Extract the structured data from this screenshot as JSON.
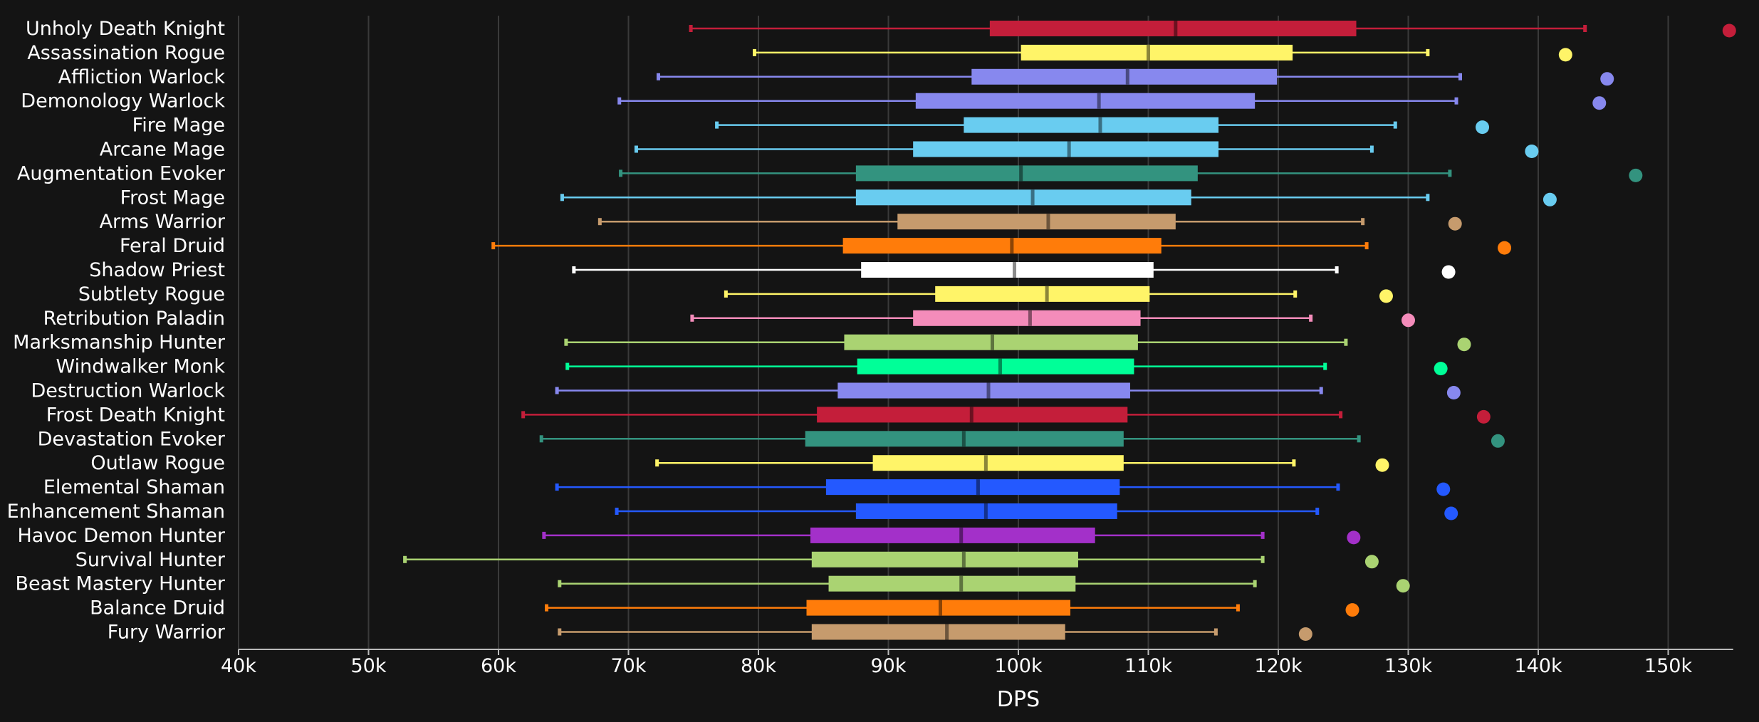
{
  "chart_data": {
    "type": "box",
    "xlabel": "DPS",
    "xlim": [
      40000,
      155000
    ],
    "x_ticks": [
      40000,
      50000,
      60000,
      70000,
      80000,
      90000,
      100000,
      110000,
      120000,
      130000,
      140000,
      150000
    ],
    "x_tick_labels": [
      "40k",
      "50k",
      "60k",
      "70k",
      "80k",
      "90k",
      "100k",
      "110k",
      "120k",
      "130k",
      "140k",
      "150k"
    ],
    "grid": true,
    "series": [
      {
        "name": "Unholy Death Knight",
        "color": "#C41E3A",
        "min": 74800,
        "q1": 97800,
        "median": 112100,
        "q3": 126000,
        "max": 143600,
        "outlier": 154700
      },
      {
        "name": "Assassination Rogue",
        "color": "#FFF468",
        "min": 79700,
        "q1": 100200,
        "median": 110000,
        "q3": 121100,
        "max": 131500,
        "outlier": 142100
      },
      {
        "name": "Affliction Warlock",
        "color": "#8788EE",
        "min": 72300,
        "q1": 96400,
        "median": 108400,
        "q3": 119900,
        "max": 134000,
        "outlier": 145300
      },
      {
        "name": "Demonology Warlock",
        "color": "#8788EE",
        "min": 69300,
        "q1": 92100,
        "median": 106200,
        "q3": 118200,
        "max": 133700,
        "outlier": 144700
      },
      {
        "name": "Fire Mage",
        "color": "#69CCF0",
        "min": 76800,
        "q1": 95800,
        "median": 106300,
        "q3": 115400,
        "max": 129000,
        "outlier": 135700
      },
      {
        "name": "Arcane Mage",
        "color": "#69CCF0",
        "min": 70600,
        "q1": 91900,
        "median": 103900,
        "q3": 115400,
        "max": 127200,
        "outlier": 139500
      },
      {
        "name": "Augmentation Evoker",
        "color": "#33937F",
        "min": 69400,
        "q1": 87500,
        "median": 100200,
        "q3": 113800,
        "max": 133200,
        "outlier": 147500
      },
      {
        "name": "Frost Mage",
        "color": "#69CCF0",
        "min": 64900,
        "q1": 87500,
        "median": 101100,
        "q3": 113300,
        "max": 131500,
        "outlier": 140900
      },
      {
        "name": "Arms Warrior",
        "color": "#C69B6D",
        "min": 67800,
        "q1": 90700,
        "median": 102300,
        "q3": 112100,
        "max": 126500,
        "outlier": 133600
      },
      {
        "name": "Feral Druid",
        "color": "#FF7C0A",
        "min": 59600,
        "q1": 86500,
        "median": 99500,
        "q3": 111000,
        "max": 126800,
        "outlier": 137400
      },
      {
        "name": "Shadow Priest",
        "color": "#FFFFFF",
        "min": 65800,
        "q1": 87900,
        "median": 99700,
        "q3": 110400,
        "max": 124500,
        "outlier": 133100
      },
      {
        "name": "Subtlety Rogue",
        "color": "#FFF468",
        "min": 77500,
        "q1": 93600,
        "median": 102200,
        "q3": 110100,
        "max": 121300,
        "outlier": 128300
      },
      {
        "name": "Retribution Paladin",
        "color": "#F48CBA",
        "min": 74900,
        "q1": 91900,
        "median": 100900,
        "q3": 109400,
        "max": 122500,
        "outlier": 130000
      },
      {
        "name": "Marksmanship Hunter",
        "color": "#AAD372",
        "min": 65200,
        "q1": 86600,
        "median": 98000,
        "q3": 109200,
        "max": 125200,
        "outlier": 134300
      },
      {
        "name": "Windwalker Monk",
        "color": "#00FF98",
        "min": 65300,
        "q1": 87600,
        "median": 98600,
        "q3": 108900,
        "max": 123600,
        "outlier": 132500
      },
      {
        "name": "Destruction Warlock",
        "color": "#8788EE",
        "min": 64500,
        "q1": 86100,
        "median": 97700,
        "q3": 108600,
        "max": 123300,
        "outlier": 133500
      },
      {
        "name": "Frost Death Knight",
        "color": "#C41E3A",
        "min": 61900,
        "q1": 84500,
        "median": 96400,
        "q3": 108400,
        "max": 124800,
        "outlier": 135800
      },
      {
        "name": "Devastation Evoker",
        "color": "#33937F",
        "min": 63300,
        "q1": 83600,
        "median": 95800,
        "q3": 108100,
        "max": 126200,
        "outlier": 136900
      },
      {
        "name": "Outlaw Rogue",
        "color": "#FFF468",
        "min": 72200,
        "q1": 88800,
        "median": 97500,
        "q3": 108100,
        "max": 121200,
        "outlier": 128000
      },
      {
        "name": "Elemental Shaman",
        "color": "#2459FF",
        "min": 64500,
        "q1": 85200,
        "median": 96900,
        "q3": 107800,
        "max": 124600,
        "outlier": 132700
      },
      {
        "name": "Enhancement Shaman",
        "color": "#2459FF",
        "min": 69100,
        "q1": 87500,
        "median": 97500,
        "q3": 107600,
        "max": 123000,
        "outlier": 133300
      },
      {
        "name": "Havoc Demon Hunter",
        "color": "#A330C9",
        "min": 63500,
        "q1": 84000,
        "median": 95600,
        "q3": 105900,
        "max": 118800,
        "outlier": 125800
      },
      {
        "name": "Survival Hunter",
        "color": "#AAD372",
        "min": 52800,
        "q1": 84100,
        "median": 95800,
        "q3": 104600,
        "max": 118800,
        "outlier": 127200
      },
      {
        "name": "Beast Mastery Hunter",
        "color": "#AAD372",
        "min": 64700,
        "q1": 85400,
        "median": 95600,
        "q3": 104400,
        "max": 118200,
        "outlier": 129600
      },
      {
        "name": "Balance Druid",
        "color": "#FF7C0A",
        "min": 63700,
        "q1": 83700,
        "median": 94000,
        "q3": 104000,
        "max": 116900,
        "outlier": 125700
      },
      {
        "name": "Fury Warrior",
        "color": "#C69B6D",
        "min": 64700,
        "q1": 84100,
        "median": 94500,
        "q3": 103600,
        "max": 115200,
        "outlier": 122100
      }
    ]
  }
}
